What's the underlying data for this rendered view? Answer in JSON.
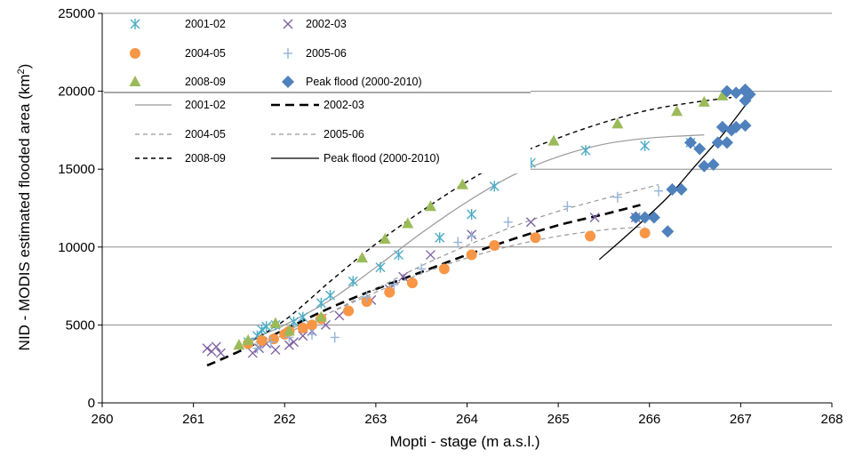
{
  "chart_data": {
    "type": "scatter",
    "xlabel": "Mopti - stage (m a.s.l.)",
    "ylabel": "NID - MODIS estimated flooded area (km²)",
    "ylabel_main": "NID - MODIS estimated flooded area (km",
    "ylabel_sup": "2",
    "ylabel_end": ")",
    "xlim": [
      260,
      268
    ],
    "ylim": [
      0,
      25000
    ],
    "x_ticks": [
      "260",
      "261",
      "262",
      "263",
      "264",
      "265",
      "266",
      "267",
      "268"
    ],
    "y_ticks": [
      "0",
      "5000",
      "10000",
      "15000",
      "20000",
      "25000"
    ],
    "grid": "horizontal",
    "legend_placement": "top-left",
    "series": [
      {
        "name": "2001-02",
        "marker": "asterisk",
        "color": "#4bacc6",
        "points": [
          [
            261.6,
            3900
          ],
          [
            261.7,
            4300
          ],
          [
            261.75,
            4700
          ],
          [
            261.8,
            4900
          ],
          [
            261.9,
            5000
          ],
          [
            262.1,
            5200
          ],
          [
            262.2,
            5500
          ],
          [
            262.4,
            6400
          ],
          [
            262.5,
            6900
          ],
          [
            262.75,
            7800
          ],
          [
            263.05,
            8700
          ],
          [
            263.25,
            9500
          ],
          [
            263.7,
            10600
          ],
          [
            264.05,
            12100
          ],
          [
            264.3,
            13900
          ],
          [
            264.7,
            15400
          ],
          [
            265.3,
            16200
          ],
          [
            265.95,
            16500
          ],
          [
            266.45,
            16700
          ]
        ]
      },
      {
        "name": "2002-03",
        "marker": "x",
        "color": "#8064a2",
        "points": [
          [
            261.15,
            3500
          ],
          [
            261.2,
            3300
          ],
          [
            261.25,
            3600
          ],
          [
            261.3,
            3200
          ],
          [
            261.65,
            3200
          ],
          [
            261.72,
            3500
          ],
          [
            261.8,
            3800
          ],
          [
            261.9,
            3400
          ],
          [
            262.05,
            3700
          ],
          [
            262.1,
            3900
          ],
          [
            262.2,
            4300
          ],
          [
            262.3,
            4600
          ],
          [
            262.45,
            5000
          ],
          [
            262.6,
            5600
          ],
          [
            262.95,
            6600
          ],
          [
            263.15,
            7300
          ],
          [
            263.3,
            8100
          ],
          [
            263.6,
            9500
          ],
          [
            264.05,
            10800
          ],
          [
            264.7,
            11600
          ],
          [
            265.4,
            11900
          ],
          [
            265.85,
            11900
          ]
        ]
      },
      {
        "name": "2004-05",
        "marker": "circle",
        "color": "#f79646",
        "points": [
          [
            261.6,
            3800
          ],
          [
            261.75,
            4000
          ],
          [
            261.88,
            4100
          ],
          [
            262.0,
            4400
          ],
          [
            262.05,
            4600
          ],
          [
            262.2,
            4800
          ],
          [
            262.3,
            5000
          ],
          [
            262.4,
            5400
          ],
          [
            262.7,
            5900
          ],
          [
            262.9,
            6500
          ],
          [
            263.15,
            7100
          ],
          [
            263.4,
            7700
          ],
          [
            263.75,
            8600
          ],
          [
            264.05,
            9500
          ],
          [
            264.3,
            10100
          ],
          [
            264.75,
            10600
          ],
          [
            265.35,
            10700
          ],
          [
            265.95,
            10900
          ]
        ]
      },
      {
        "name": "2005-06",
        "marker": "plus",
        "color": "#95b3d7",
        "points": [
          [
            261.7,
            3500
          ],
          [
            261.85,
            3900
          ],
          [
            262.05,
            4200
          ],
          [
            262.3,
            4400
          ],
          [
            262.55,
            4200
          ],
          [
            262.9,
            6800
          ],
          [
            263.2,
            7600
          ],
          [
            263.5,
            8600
          ],
          [
            263.9,
            10300
          ],
          [
            264.05,
            10700
          ],
          [
            264.45,
            11600
          ],
          [
            265.1,
            12600
          ],
          [
            265.65,
            13200
          ],
          [
            266.1,
            13600
          ]
        ]
      },
      {
        "name": "2008-09",
        "marker": "triangle",
        "color": "#9bbb59",
        "points": [
          [
            261.5,
            3700
          ],
          [
            261.6,
            4000
          ],
          [
            261.9,
            5100
          ],
          [
            262.05,
            4600
          ],
          [
            262.4,
            5500
          ],
          [
            262.85,
            9300
          ],
          [
            263.1,
            10500
          ],
          [
            263.35,
            11500
          ],
          [
            263.6,
            12600
          ],
          [
            263.95,
            14000
          ],
          [
            264.4,
            15500
          ],
          [
            264.95,
            16800
          ],
          [
            265.65,
            17900
          ],
          [
            266.3,
            18700
          ],
          [
            266.6,
            19300
          ],
          [
            266.8,
            19700
          ]
        ]
      },
      {
        "name": "Peak flood (2000-2010)",
        "marker": "diamond",
        "color": "#4f81bd",
        "points": [
          [
            265.85,
            11900
          ],
          [
            265.95,
            11900
          ],
          [
            266.05,
            11900
          ],
          [
            266.2,
            11000
          ],
          [
            266.25,
            13700
          ],
          [
            266.35,
            13700
          ],
          [
            266.45,
            16700
          ],
          [
            266.55,
            16300
          ],
          [
            266.6,
            15200
          ],
          [
            266.7,
            15300
          ],
          [
            266.75,
            16700
          ],
          [
            266.85,
            16700
          ],
          [
            266.8,
            17700
          ],
          [
            266.9,
            17500
          ],
          [
            266.85,
            20000
          ],
          [
            266.95,
            19900
          ],
          [
            267.05,
            20000
          ],
          [
            266.95,
            17700
          ],
          [
            267.05,
            17800
          ],
          [
            267.05,
            19400
          ],
          [
            267.1,
            19800
          ],
          [
            267.05,
            20100
          ]
        ]
      }
    ],
    "trendlines": [
      {
        "name": "2001-02",
        "style": "solid-thin",
        "color": "#999999",
        "points": [
          [
            261.6,
            4000
          ],
          [
            262.0,
            5000
          ],
          [
            262.5,
            6600
          ],
          [
            263.0,
            8700
          ],
          [
            263.5,
            10900
          ],
          [
            264.0,
            12900
          ],
          [
            264.5,
            14600
          ],
          [
            265.0,
            15800
          ],
          [
            265.5,
            16600
          ],
          [
            266.0,
            17000
          ],
          [
            266.6,
            17200
          ]
        ]
      },
      {
        "name": "2002-03",
        "style": "dash-thick",
        "color": "#000000",
        "points": [
          [
            261.15,
            2400
          ],
          [
            261.5,
            3300
          ],
          [
            262.0,
            4700
          ],
          [
            262.5,
            6100
          ],
          [
            263.0,
            7300
          ],
          [
            263.5,
            8400
          ],
          [
            264.0,
            9500
          ],
          [
            264.5,
            10500
          ],
          [
            265.0,
            11400
          ],
          [
            265.5,
            12100
          ],
          [
            265.9,
            12700
          ]
        ]
      },
      {
        "name": "2004-05",
        "style": "dash-thin",
        "color": "#999999",
        "points": [
          [
            261.6,
            3700
          ],
          [
            262.0,
            4600
          ],
          [
            262.5,
            5800
          ],
          [
            263.0,
            7100
          ],
          [
            263.5,
            8300
          ],
          [
            264.0,
            9300
          ],
          [
            264.5,
            10100
          ],
          [
            265.0,
            10700
          ],
          [
            265.5,
            11100
          ],
          [
            265.95,
            11300
          ]
        ]
      },
      {
        "name": "2005-06",
        "style": "dash-thin",
        "color": "#999999",
        "points": [
          [
            261.7,
            3600
          ],
          [
            262.0,
            4400
          ],
          [
            262.5,
            5800
          ],
          [
            263.0,
            7300
          ],
          [
            263.5,
            8800
          ],
          [
            264.0,
            10100
          ],
          [
            264.5,
            11300
          ],
          [
            265.0,
            12300
          ],
          [
            265.5,
            13100
          ],
          [
            266.1,
            14000
          ]
        ]
      },
      {
        "name": "2008-09",
        "style": "dash-medium",
        "color": "#000000",
        "points": [
          [
            261.5,
            3500
          ],
          [
            262.0,
            5300
          ],
          [
            262.5,
            7800
          ],
          [
            263.0,
            10200
          ],
          [
            263.5,
            12300
          ],
          [
            264.0,
            14200
          ],
          [
            264.5,
            15800
          ],
          [
            265.0,
            17000
          ],
          [
            265.5,
            18000
          ],
          [
            266.0,
            18800
          ],
          [
            266.5,
            19300
          ],
          [
            266.9,
            19600
          ]
        ]
      },
      {
        "name": "Peak flood (2000-2010)",
        "style": "solid",
        "color": "#000000",
        "points": [
          [
            265.45,
            9200
          ],
          [
            265.8,
            11000
          ],
          [
            266.2,
            13200
          ],
          [
            266.5,
            15200
          ],
          [
            266.8,
            17200
          ],
          [
            267.0,
            18700
          ],
          [
            267.1,
            19500
          ]
        ]
      }
    ]
  }
}
